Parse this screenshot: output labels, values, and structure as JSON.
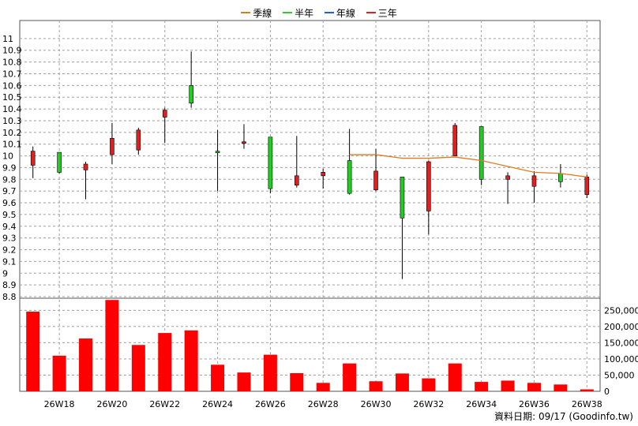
{
  "legend": [
    {
      "label": "季線",
      "color": "#e07a1f"
    },
    {
      "label": "半年",
      "color": "#33cc33"
    },
    {
      "label": "年線",
      "color": "#1f5fe0"
    },
    {
      "label": "三年",
      "color": "#e02020"
    }
  ],
  "footer": "資料日期: 09/17   (Goodinfo.tw)",
  "colors": {
    "up": "#e02020",
    "down": "#22cc22",
    "volume": "#ff0000",
    "ma": "#e07a1f",
    "grid": "#a0a0a0"
  },
  "chart_data": {
    "type": "candlestick",
    "price_axis": {
      "range": [
        8.8,
        11.1
      ],
      "ticks": [
        8.8,
        8.9,
        9,
        9.1,
        9.2,
        9.3,
        9.4,
        9.5,
        9.6,
        9.7,
        9.8,
        9.9,
        10,
        10.1,
        10.2,
        10.3,
        10.4,
        10.5,
        10.6,
        10.7,
        10.8,
        10.9,
        11
      ],
      "tick_labels": [
        "8.8",
        "8.9",
        "9",
        "9.1",
        "9.2",
        "9.3",
        "9.4",
        "9.5",
        "9.6",
        "9.7",
        "9.8",
        "9.9",
        "10",
        "10.1",
        "10.2",
        "10.3",
        "10.4",
        "10.5",
        "10.6",
        "10.7",
        "10.8",
        "10.9",
        "11"
      ]
    },
    "volume_axis": {
      "range": [
        0,
        285000
      ],
      "ticks": [
        0,
        50000,
        100000,
        150000,
        200000,
        250000
      ],
      "tick_labels": [
        "0",
        "50,000",
        "100,000",
        "150,000",
        "200,000",
        "250,000"
      ]
    },
    "x_labels": [
      {
        "label": "26W18",
        "at": 1
      },
      {
        "label": "26W20",
        "at": 3
      },
      {
        "label": "26W22",
        "at": 5
      },
      {
        "label": "26W24",
        "at": 7
      },
      {
        "label": "26W26",
        "at": 9
      },
      {
        "label": "26W28",
        "at": 11
      },
      {
        "label": "26W30",
        "at": 13
      },
      {
        "label": "26W32",
        "at": 15
      },
      {
        "label": "26W34",
        "at": 17
      },
      {
        "label": "26W36",
        "at": 19
      },
      {
        "label": "26W38",
        "at": 21
      }
    ],
    "candles": [
      {
        "open": 9.92,
        "high": 10.08,
        "low": 9.81,
        "close": 10.04
      },
      {
        "open": 10.03,
        "high": 10.03,
        "low": 9.85,
        "close": 9.86
      },
      {
        "open": 9.88,
        "high": 9.95,
        "low": 9.63,
        "close": 9.93
      },
      {
        "open": 10.01,
        "high": 10.28,
        "low": 9.93,
        "close": 10.15
      },
      {
        "open": 10.05,
        "high": 10.24,
        "low": 10.01,
        "close": 10.22
      },
      {
        "open": 10.33,
        "high": 10.41,
        "low": 10.11,
        "close": 10.39
      },
      {
        "open": 10.6,
        "high": 10.89,
        "low": 10.41,
        "close": 10.45
      },
      {
        "open": 10.04,
        "high": 10.22,
        "low": 9.7,
        "close": 10.03
      },
      {
        "open": 10.11,
        "high": 10.27,
        "low": 10.06,
        "close": 10.12
      },
      {
        "open": 10.16,
        "high": 10.16,
        "low": 9.68,
        "close": 9.72
      },
      {
        "open": 9.75,
        "high": 10.17,
        "low": 9.73,
        "close": 9.83
      },
      {
        "open": 9.83,
        "high": 9.89,
        "low": 9.72,
        "close": 9.86
      },
      {
        "open": 9.96,
        "high": 10.23,
        "low": 9.67,
        "close": 9.68
      },
      {
        "open": 9.71,
        "high": 10.06,
        "low": 9.7,
        "close": 9.87
      },
      {
        "open": 9.82,
        "high": 9.82,
        "low": 8.95,
        "close": 9.47
      },
      {
        "open": 9.53,
        "high": 9.96,
        "low": 9.33,
        "close": 9.95
      },
      {
        "open": 10.0,
        "high": 10.28,
        "low": 10.0,
        "close": 10.26
      },
      {
        "open": 10.25,
        "high": 10.25,
        "low": 9.75,
        "close": 9.8
      },
      {
        "open": 9.8,
        "high": 9.86,
        "low": 9.59,
        "close": 9.83
      },
      {
        "open": 9.74,
        "high": 9.87,
        "low": 9.6,
        "close": 9.83
      },
      {
        "open": 9.85,
        "high": 9.93,
        "low": 9.73,
        "close": 9.78
      },
      {
        "open": 9.67,
        "high": 9.84,
        "low": 9.64,
        "close": 9.82
      }
    ],
    "volume": [
      246000,
      110000,
      163000,
      282000,
      143000,
      180000,
      188000,
      82000,
      58000,
      113000,
      56000,
      26000,
      86000,
      31000,
      55000,
      40000,
      86000,
      29000,
      33000,
      26000,
      21000,
      6000
    ],
    "ma_quarter": [
      {
        "i": 12,
        "v": 10.01
      },
      {
        "i": 13,
        "v": 10.01
      },
      {
        "i": 14,
        "v": 9.98
      },
      {
        "i": 15,
        "v": 9.98
      },
      {
        "i": 16,
        "v": 9.99
      },
      {
        "i": 17,
        "v": 9.96
      },
      {
        "i": 18,
        "v": 9.91
      },
      {
        "i": 19,
        "v": 9.86
      },
      {
        "i": 20,
        "v": 9.85
      },
      {
        "i": 21,
        "v": 9.82
      }
    ]
  }
}
